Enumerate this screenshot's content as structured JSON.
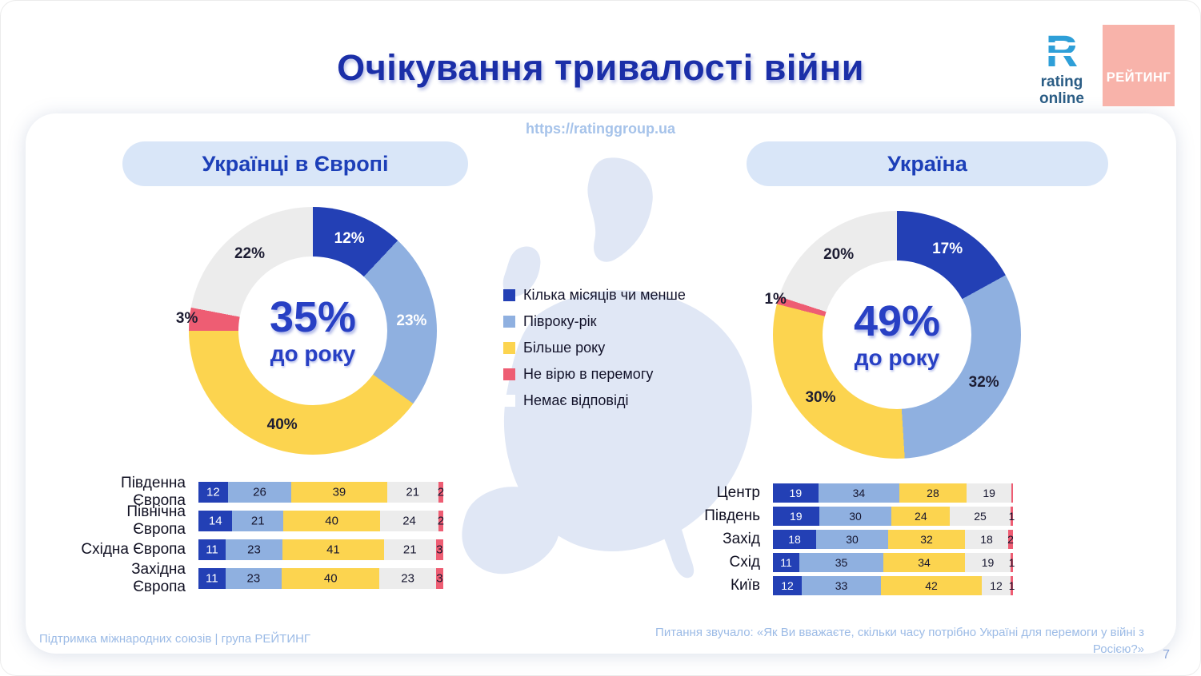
{
  "page": {
    "title": "Очікування тривалості війни",
    "url": "https://ratinggroup.ua",
    "footer_left": "Підтримка міжнародних союзів | група РЕЙТИНГ",
    "footer_right": "Питання звучало: «Як Ви вважаєте, скільки часу потрібно Україні для перемоги у війні з Росією?»",
    "page_number": "7"
  },
  "logos": {
    "rating_online": {
      "glyph": "R",
      "line1": "rating",
      "line2": "online"
    },
    "rating_badge": "РЕЙТИНГ"
  },
  "panels": [
    {
      "title": "Українці в Європі"
    },
    {
      "title": "Україна"
    }
  ],
  "colors": {
    "title_blue": "#1b2fa8",
    "dark_blue": "#2340b5",
    "light_blue": "#8fb0e0",
    "yellow": "#fcd44f",
    "red": "#ee5d73",
    "gray": "#ececec",
    "pill_bg": "#d9e6f8",
    "badge_salmon": "#f8b3aa",
    "muted_blue": "#9cbbe6"
  },
  "legend": {
    "items": [
      {
        "label": "Кілька місяців чи менше",
        "color": "#2340b5"
      },
      {
        "label": "Півроку-рік",
        "color": "#8fb0e0"
      },
      {
        "label": "Більше року",
        "color": "#fcd44f"
      },
      {
        "label": "Не вірю в перемогу",
        "color": "#ee5d73"
      },
      {
        "label": "Немає відповіді",
        "color": "#ffffff"
      }
    ]
  },
  "chart_data": [
    {
      "id": "donut_europe",
      "type": "pie",
      "variant": "donut",
      "title": "Українці в Європі",
      "center": {
        "value": "35%",
        "label": "до року"
      },
      "slices": [
        {
          "label": "Кілька місяців чи менше",
          "value": 12,
          "color": "#2340b5",
          "label_color": "#ffffff"
        },
        {
          "label": "Півроку-рік",
          "value": 23,
          "color": "#8fb0e0",
          "label_color": "#ffffff"
        },
        {
          "label": "Більше року",
          "value": 40,
          "color": "#fcd44f",
          "label_color": "#1d1d33"
        },
        {
          "label": "Не вірю в перемогу",
          "value": 3,
          "color": "#ee5d73",
          "label_color": "#1d1d33"
        },
        {
          "label": "Немає відповіді",
          "value": 22,
          "color": "#ececec",
          "label_color": "#1d1d33"
        }
      ]
    },
    {
      "id": "donut_ukraine",
      "type": "pie",
      "variant": "donut",
      "title": "Україна",
      "center": {
        "value": "49%",
        "label": "до року"
      },
      "slices": [
        {
          "label": "Кілька місяців чи менше",
          "value": 17,
          "color": "#2340b5",
          "label_color": "#ffffff"
        },
        {
          "label": "Півроку-рік",
          "value": 32,
          "color": "#8fb0e0",
          "label_color": "#1d1d33"
        },
        {
          "label": "Більше року",
          "value": 30,
          "color": "#fcd44f",
          "label_color": "#1d1d33"
        },
        {
          "label": "Не вірю в перемогу",
          "value": 1,
          "color": "#ee5d73",
          "label_color": "#1d1d33"
        },
        {
          "label": "Немає відповіді",
          "value": 20,
          "color": "#ececec",
          "label_color": "#1d1d33"
        }
      ]
    },
    {
      "id": "bars_europe",
      "type": "bar",
      "variant": "stacked-horizontal",
      "series_order": [
        "Кілька місяців чи менше",
        "Півроку-рік",
        "Більше року",
        "Немає відповіді",
        "Не вірю в перемогу"
      ],
      "series_colors": [
        "#2340b5",
        "#8fb0e0",
        "#fcd44f",
        "#ececec",
        "#ee5d73"
      ],
      "rows": [
        {
          "label": "Південна Європа",
          "values": [
            12,
            26,
            39,
            21,
            2
          ]
        },
        {
          "label": "Північна Європа",
          "values": [
            14,
            21,
            40,
            24,
            2
          ]
        },
        {
          "label": "Східна Європа",
          "values": [
            11,
            23,
            41,
            21,
            3
          ]
        },
        {
          "label": "Західна Європа",
          "values": [
            11,
            23,
            40,
            23,
            3
          ]
        }
      ]
    },
    {
      "id": "bars_ukraine",
      "type": "bar",
      "variant": "stacked-horizontal",
      "series_order": [
        "Кілька місяців чи менше",
        "Півроку-рік",
        "Більше року",
        "Немає відповіді",
        "Не вірю в перемогу"
      ],
      "series_colors": [
        "#2340b5",
        "#8fb0e0",
        "#fcd44f",
        "#ececec",
        "#ee5d73"
      ],
      "rows": [
        {
          "label": "Центр",
          "values": [
            19,
            34,
            28,
            19,
            0.5
          ]
        },
        {
          "label": "Південь",
          "values": [
            19,
            30,
            24,
            25,
            1
          ]
        },
        {
          "label": "Захід",
          "values": [
            18,
            30,
            32,
            18,
            2
          ]
        },
        {
          "label": "Схід",
          "values": [
            11,
            35,
            34,
            19,
            1
          ]
        },
        {
          "label": "Київ",
          "values": [
            12,
            33,
            42,
            12,
            1
          ]
        }
      ]
    }
  ]
}
